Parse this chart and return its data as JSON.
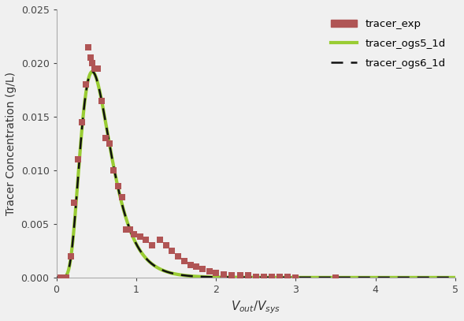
{
  "title": "",
  "xlabel": "V_{out}/V_{sys}",
  "ylabel": "Tracer Concentration (g/L)",
  "xlim": [
    0,
    5
  ],
  "ylim": [
    0,
    0.025
  ],
  "yticks": [
    0,
    0.005,
    0.01,
    0.015,
    0.02,
    0.025
  ],
  "xticks": [
    0,
    1,
    2,
    3,
    4,
    5
  ],
  "exp_color": "#b05555",
  "line1_color": "#99cc33",
  "line2_color": "#111111",
  "curve_mu": 0.45,
  "curve_sigma": 0.42,
  "curve_scale": 0.0192,
  "exp_x": [
    0.05,
    0.12,
    0.18,
    0.22,
    0.27,
    0.32,
    0.37,
    0.4,
    0.43,
    0.45,
    0.48,
    0.52,
    0.57,
    0.62,
    0.67,
    0.72,
    0.77,
    0.82,
    0.87,
    0.92,
    0.97,
    1.05,
    1.12,
    1.2,
    1.3,
    1.38,
    1.45,
    1.52,
    1.6,
    1.68,
    1.75,
    1.83,
    1.92,
    2.0,
    2.1,
    2.2,
    2.3,
    2.4,
    2.5,
    2.6,
    2.7,
    2.8,
    2.9,
    3.0,
    3.5
  ],
  "exp_y": [
    0.0,
    0.0,
    0.002,
    0.007,
    0.011,
    0.0145,
    0.018,
    0.0215,
    0.0205,
    0.02,
    0.0195,
    0.0195,
    0.0165,
    0.013,
    0.0125,
    0.01,
    0.0085,
    0.0075,
    0.0045,
    0.0045,
    0.004,
    0.0038,
    0.0035,
    0.003,
    0.0035,
    0.003,
    0.0025,
    0.002,
    0.0015,
    0.0012,
    0.001,
    0.0008,
    0.0006,
    0.0004,
    0.0003,
    0.0002,
    0.0002,
    0.0002,
    0.0001,
    0.0001,
    0.0001,
    0.0001,
    0.0001,
    0.0,
    0.0
  ],
  "background_color": "#f0f0f0",
  "plot_bg_color": "#f0f0f0",
  "legend_labels": [
    "tracer_exp",
    "tracer_ogs5_1d",
    "tracer_ogs6_1d"
  ]
}
